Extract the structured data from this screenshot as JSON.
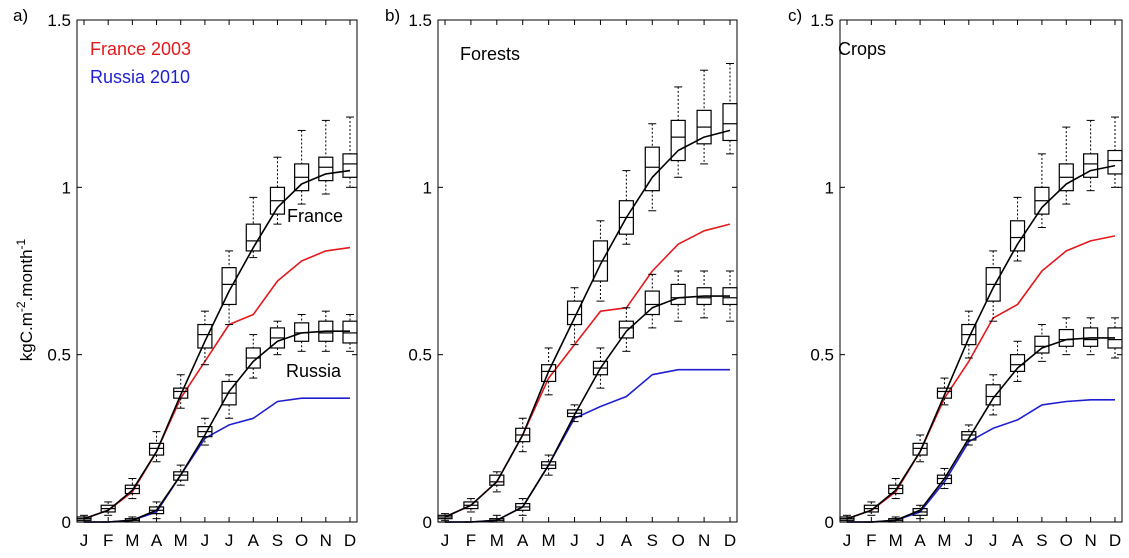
{
  "colors": {
    "france": "#e31a1c",
    "russia": "#1f1fd0",
    "model": "#000000"
  },
  "ylabel_main": "kgC.m",
  "ylabel_sup1": "-2",
  "ylabel_mid": ".month",
  "ylabel_sup2": "-1",
  "chart_data": [
    {
      "type": "line",
      "panel_label": "a)",
      "title": "",
      "categories": [
        "J",
        "F",
        "M",
        "A",
        "M",
        "J",
        "J",
        "A",
        "S",
        "O",
        "N",
        "D"
      ],
      "ylim": [
        0,
        1.5
      ],
      "yticks": [
        "0",
        "0.5",
        "1",
        "1.5"
      ],
      "legend": [
        {
          "label": "France 2003",
          "color": "#e31a1c"
        },
        {
          "label": "Russia 2010",
          "color": "#1f1fd0"
        }
      ],
      "legend_position": "top-left",
      "annotations": [
        "France",
        "Russia"
      ],
      "series": [
        {
          "name": "France 2003",
          "color": "#e31a1c",
          "values": [
            0.01,
            0.035,
            0.09,
            0.21,
            0.37,
            0.48,
            0.59,
            0.62,
            0.72,
            0.78,
            0.81,
            0.82
          ]
        },
        {
          "name": "Russia 2010",
          "color": "#1f1fd0",
          "values": [
            0.0,
            0.0,
            0.005,
            0.03,
            0.14,
            0.25,
            0.29,
            0.31,
            0.36,
            0.37,
            0.37,
            0.37
          ]
        },
        {
          "color": "#000000",
          "values": [
            0.01,
            0.035,
            0.095,
            0.21,
            0.38,
            0.54,
            0.69,
            0.82,
            0.94,
            1.01,
            1.04,
            1.05
          ]
        },
        {
          "color": "#000000",
          "values": [
            0.0,
            0.0,
            0.005,
            0.035,
            0.14,
            0.26,
            0.39,
            0.48,
            0.54,
            0.565,
            0.57,
            0.57
          ]
        }
      ],
      "boxes": [
        {
          "color": "#000000",
          "stats": [
            [
              0.0,
              0.005,
              0.01,
              0.015,
              0.02
            ],
            [
              0.02,
              0.03,
              0.04,
              0.05,
              0.06
            ],
            [
              0.07,
              0.085,
              0.1,
              0.11,
              0.13
            ],
            [
              0.18,
              0.2,
              0.22,
              0.235,
              0.27
            ],
            [
              0.34,
              0.37,
              0.39,
              0.4,
              0.44
            ],
            [
              0.47,
              0.52,
              0.56,
              0.59,
              0.63
            ],
            [
              0.59,
              0.65,
              0.71,
              0.76,
              0.81
            ],
            [
              0.79,
              0.81,
              0.84,
              0.89,
              0.97
            ],
            [
              0.89,
              0.92,
              0.96,
              1.0,
              1.09
            ],
            [
              0.95,
              0.99,
              1.03,
              1.07,
              1.17
            ],
            [
              0.98,
              1.02,
              1.06,
              1.09,
              1.2
            ],
            [
              1.0,
              1.03,
              1.07,
              1.1,
              1.21
            ]
          ]
        },
        {
          "color": "#000000",
          "stats": [
            [
              0,
              0,
              0,
              0,
              0
            ],
            [
              0,
              0,
              0,
              0,
              0
            ],
            [
              0.0,
              0.0,
              0.005,
              0.01,
              0.015
            ],
            [
              0.01,
              0.025,
              0.035,
              0.045,
              0.06
            ],
            [
              0.11,
              0.125,
              0.14,
              0.15,
              0.17
            ],
            [
              0.23,
              0.255,
              0.27,
              0.285,
              0.31
            ],
            [
              0.31,
              0.35,
              0.385,
              0.42,
              0.44
            ],
            [
              0.43,
              0.46,
              0.49,
              0.52,
              0.56
            ],
            [
              0.5,
              0.52,
              0.55,
              0.58,
              0.6
            ],
            [
              0.51,
              0.54,
              0.565,
              0.595,
              0.62
            ],
            [
              0.51,
              0.54,
              0.565,
              0.6,
              0.63
            ],
            [
              0.51,
              0.535,
              0.565,
              0.6,
              0.62
            ]
          ]
        }
      ]
    },
    {
      "type": "line",
      "panel_label": "b)",
      "title": "Forests",
      "categories": [
        "J",
        "F",
        "M",
        "A",
        "M",
        "J",
        "J",
        "A",
        "S",
        "O",
        "N",
        "D"
      ],
      "ylim": [
        0,
        1.5
      ],
      "yticks": [
        "0",
        "0.5",
        "1",
        "1.5"
      ],
      "series": [
        {
          "color": "#e31a1c",
          "values": [
            0.015,
            0.05,
            0.12,
            0.26,
            0.43,
            0.53,
            0.63,
            0.64,
            0.75,
            0.83,
            0.87,
            0.89
          ]
        },
        {
          "color": "#1f1fd0",
          "values": [
            0.0,
            0.0,
            0.005,
            0.045,
            0.17,
            0.31,
            0.345,
            0.375,
            0.44,
            0.455,
            0.455,
            0.455
          ]
        },
        {
          "color": "#000000",
          "values": [
            0.015,
            0.05,
            0.12,
            0.26,
            0.45,
            0.61,
            0.77,
            0.91,
            1.03,
            1.11,
            1.15,
            1.17
          ]
        },
        {
          "color": "#000000",
          "values": [
            0.0,
            0.0,
            0.005,
            0.045,
            0.17,
            0.32,
            0.46,
            0.57,
            0.64,
            0.67,
            0.675,
            0.675
          ]
        }
      ],
      "boxes": [
        {
          "color": "#000000",
          "stats": [
            [
              0.005,
              0.01,
              0.015,
              0.02,
              0.025
            ],
            [
              0.03,
              0.04,
              0.05,
              0.06,
              0.07
            ],
            [
              0.09,
              0.11,
              0.12,
              0.14,
              0.15
            ],
            [
              0.21,
              0.24,
              0.26,
              0.28,
              0.31
            ],
            [
              0.38,
              0.42,
              0.45,
              0.47,
              0.52
            ],
            [
              0.53,
              0.59,
              0.62,
              0.66,
              0.7
            ],
            [
              0.66,
              0.72,
              0.78,
              0.84,
              0.9
            ],
            [
              0.83,
              0.86,
              0.91,
              0.96,
              1.05
            ],
            [
              0.93,
              0.99,
              1.06,
              1.12,
              1.19
            ],
            [
              1.03,
              1.08,
              1.15,
              1.2,
              1.3
            ],
            [
              1.07,
              1.13,
              1.18,
              1.23,
              1.35
            ],
            [
              1.1,
              1.14,
              1.19,
              1.25,
              1.37
            ]
          ]
        },
        {
          "color": "#000000",
          "stats": [
            [
              0,
              0,
              0,
              0,
              0
            ],
            [
              0,
              0,
              0,
              0,
              0
            ],
            [
              0.0,
              0.0,
              0.005,
              0.01,
              0.02
            ],
            [
              0.02,
              0.035,
              0.045,
              0.055,
              0.07
            ],
            [
              0.14,
              0.16,
              0.17,
              0.18,
              0.2
            ],
            [
              0.3,
              0.315,
              0.325,
              0.335,
              0.35
            ],
            [
              0.4,
              0.44,
              0.46,
              0.48,
              0.52
            ],
            [
              0.51,
              0.55,
              0.58,
              0.6,
              0.64
            ],
            [
              0.58,
              0.62,
              0.65,
              0.69,
              0.74
            ],
            [
              0.6,
              0.65,
              0.67,
              0.71,
              0.75
            ],
            [
              0.61,
              0.65,
              0.67,
              0.7,
              0.75
            ],
            [
              0.6,
              0.65,
              0.67,
              0.7,
              0.75
            ]
          ]
        }
      ]
    },
    {
      "type": "line",
      "panel_label": "c)",
      "title": "Crops",
      "categories": [
        "J",
        "F",
        "M",
        "A",
        "M",
        "J",
        "J",
        "A",
        "S",
        "O",
        "N",
        "D"
      ],
      "ylim": [
        0,
        1.5
      ],
      "yticks": [
        "0",
        "0.5",
        "1",
        "1.5"
      ],
      "series": [
        {
          "color": "#e31a1c",
          "values": [
            0.01,
            0.035,
            0.09,
            0.21,
            0.37,
            0.48,
            0.61,
            0.65,
            0.75,
            0.81,
            0.84,
            0.855
          ]
        },
        {
          "color": "#1f1fd0",
          "values": [
            0.0,
            0.0,
            0.005,
            0.03,
            0.12,
            0.24,
            0.28,
            0.305,
            0.35,
            0.36,
            0.365,
            0.365
          ]
        },
        {
          "color": "#000000",
          "values": [
            0.01,
            0.035,
            0.095,
            0.21,
            0.38,
            0.55,
            0.7,
            0.83,
            0.94,
            1.01,
            1.05,
            1.065
          ]
        },
        {
          "color": "#000000",
          "values": [
            0.0,
            0.0,
            0.005,
            0.035,
            0.13,
            0.25,
            0.37,
            0.46,
            0.52,
            0.545,
            0.55,
            0.55
          ]
        }
      ],
      "boxes": [
        {
          "color": "#000000",
          "stats": [
            [
              0.0,
              0.005,
              0.01,
              0.015,
              0.02
            ],
            [
              0.02,
              0.03,
              0.04,
              0.05,
              0.06
            ],
            [
              0.07,
              0.085,
              0.1,
              0.11,
              0.13
            ],
            [
              0.18,
              0.2,
              0.22,
              0.235,
              0.26
            ],
            [
              0.35,
              0.37,
              0.39,
              0.4,
              0.43
            ],
            [
              0.49,
              0.53,
              0.56,
              0.59,
              0.63
            ],
            [
              0.6,
              0.66,
              0.71,
              0.76,
              0.81
            ],
            [
              0.78,
              0.81,
              0.85,
              0.9,
              0.97
            ],
            [
              0.88,
              0.92,
              0.96,
              1.0,
              1.1
            ],
            [
              0.95,
              0.99,
              1.03,
              1.07,
              1.18
            ],
            [
              0.99,
              1.03,
              1.07,
              1.1,
              1.2
            ],
            [
              1.0,
              1.04,
              1.08,
              1.11,
              1.21
            ]
          ]
        },
        {
          "color": "#000000",
          "stats": [
            [
              0,
              0,
              0,
              0,
              0
            ],
            [
              0,
              0,
              0,
              0,
              0
            ],
            [
              0.0,
              0.0,
              0.005,
              0.01,
              0.015
            ],
            [
              0.01,
              0.02,
              0.03,
              0.04,
              0.05
            ],
            [
              0.1,
              0.115,
              0.13,
              0.14,
              0.16
            ],
            [
              0.23,
              0.245,
              0.26,
              0.27,
              0.29
            ],
            [
              0.32,
              0.35,
              0.375,
              0.41,
              0.44
            ],
            [
              0.42,
              0.45,
              0.47,
              0.5,
              0.54
            ],
            [
              0.48,
              0.505,
              0.525,
              0.555,
              0.59
            ],
            [
              0.5,
              0.525,
              0.545,
              0.575,
              0.61
            ],
            [
              0.5,
              0.525,
              0.545,
              0.58,
              0.61
            ],
            [
              0.49,
              0.52,
              0.545,
              0.58,
              0.61
            ]
          ]
        }
      ]
    }
  ]
}
